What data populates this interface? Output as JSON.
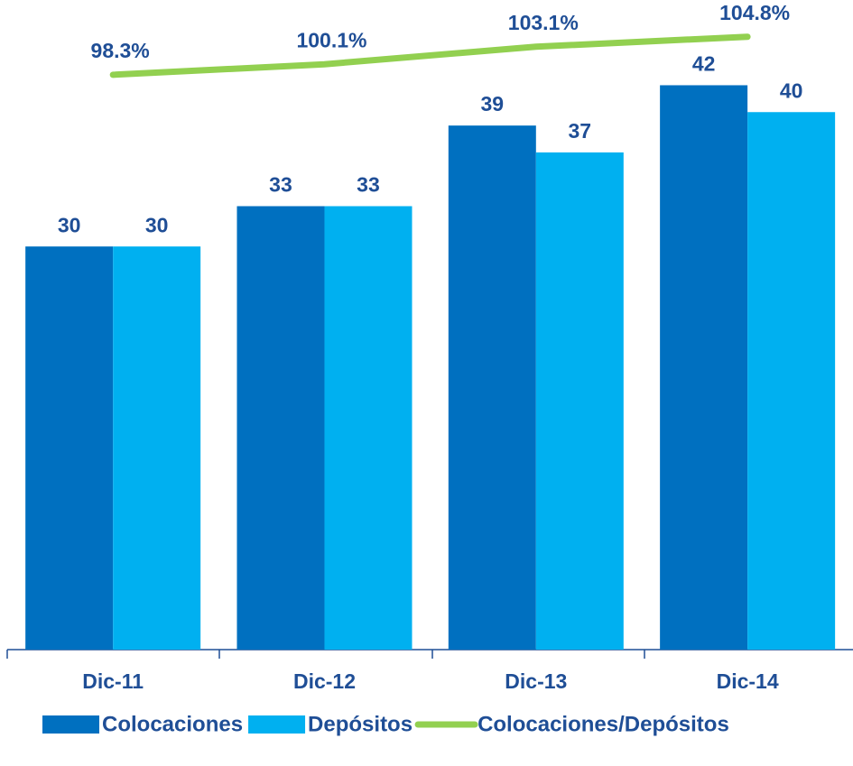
{
  "chart_data": {
    "type": "bar",
    "categories": [
      "Dic-11",
      "Dic-12",
      "Dic-13",
      "Dic-14"
    ],
    "series": [
      {
        "name": "Colocaciones",
        "color": "#0070c0",
        "values": [
          30,
          33,
          39,
          42
        ]
      },
      {
        "name": "Depósitos",
        "color": "#00b0f0",
        "values": [
          30,
          33,
          37,
          40
        ]
      },
      {
        "name": "Colocaciones/Depósitos",
        "color": "#92d050",
        "type": "line",
        "axis": "y2",
        "values": [
          98.3,
          100.1,
          103.1,
          104.8
        ],
        "value_labels": [
          "98.3%",
          "100.1%",
          "103.1%",
          "104.8%"
        ]
      }
    ],
    "ylim": [
      0,
      47
    ],
    "y2lim": [
      0,
      108
    ],
    "legend": "bottom"
  }
}
